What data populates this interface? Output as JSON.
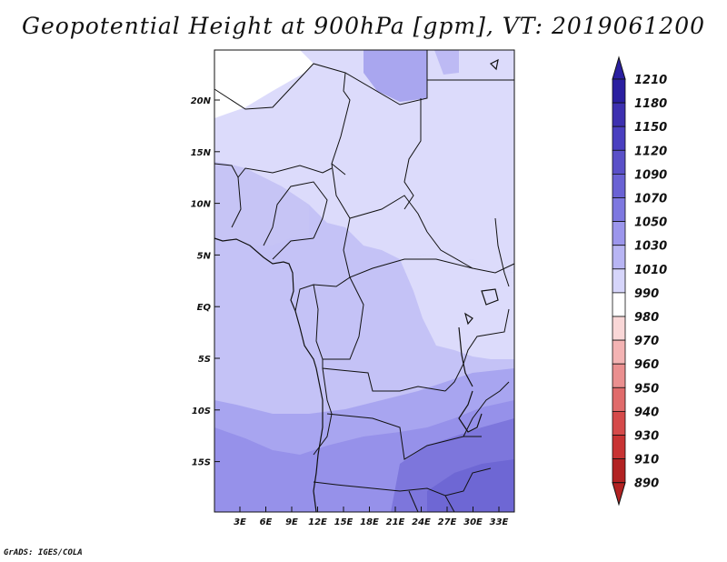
{
  "title": "Geopotential Height at 900hPa [gpm], VT: 2019061200",
  "footer": "GrADS: IGES/COLA",
  "map": {
    "lat_ticks": [
      "20N",
      "15N",
      "10N",
      "5N",
      "EQ",
      "5S",
      "10S",
      "15S"
    ],
    "lon_ticks": [
      "3E",
      "6E",
      "9E",
      "12E",
      "15E",
      "18E",
      "21E",
      "24E",
      "27E",
      "30E",
      "33E"
    ]
  },
  "colorbar": {
    "levels": [
      "1210",
      "1180",
      "1150",
      "1120",
      "1090",
      "1070",
      "1050",
      "1030",
      "1010",
      "990",
      "980",
      "970",
      "960",
      "950",
      "940",
      "930",
      "910",
      "890"
    ],
    "colors": [
      "#2a1fa0",
      "#3d30b0",
      "#4a3fc0",
      "#5a50c8",
      "#6a62d4",
      "#7e78e0",
      "#9c96ec",
      "#b8b5f3",
      "#d6d5fa",
      "#ffffff",
      "#f9d7d7",
      "#f3b3b3",
      "#ea8f8f",
      "#e06b6b",
      "#d54a4a",
      "#c83333",
      "#b22222"
    ]
  }
}
